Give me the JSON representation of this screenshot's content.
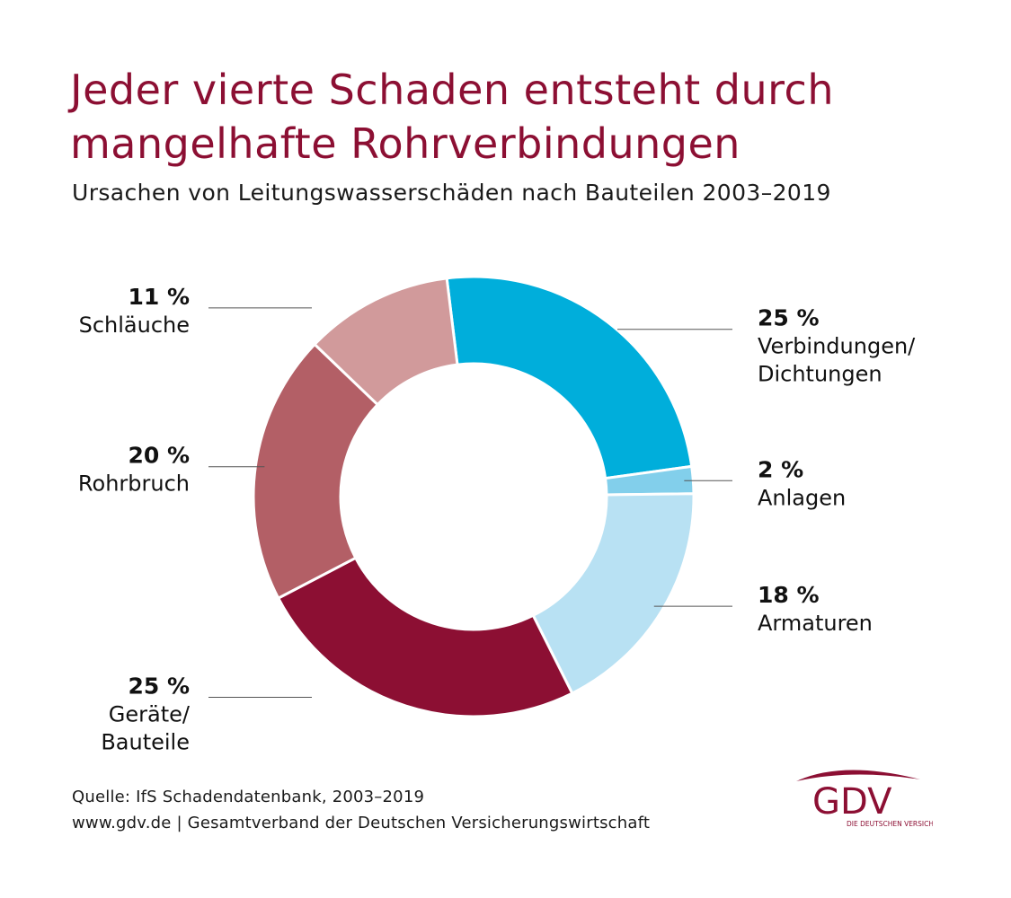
{
  "title_lines": [
    "Jeder vierte Schaden entsteht durch",
    "mangelhafte Rohrverbindungen"
  ],
  "subtitle": "Ursachen von Leitungswasserschäden nach Bauteilen 2003–2019",
  "chart_data": {
    "type": "pie",
    "donut": true,
    "title": "Jeder vierte Schaden entsteht durch mangelhafte Rohrverbindungen",
    "subtitle": "Ursachen von Leitungswasserschäden nach Bauteilen 2003–2019",
    "unit": "%",
    "slices": [
      {
        "label": "Verbindungen/ Dichtungen",
        "label_lines": [
          "Verbindungen/",
          "Dichtungen"
        ],
        "value": 25,
        "value_label": "25 %",
        "color": "#00aedb",
        "side": "right"
      },
      {
        "label": "Anlagen",
        "label_lines": [
          "Anlagen"
        ],
        "value": 2,
        "value_label": "2 %",
        "color": "#82cfeb",
        "side": "right"
      },
      {
        "label": "Armaturen",
        "label_lines": [
          "Armaturen"
        ],
        "value": 18,
        "value_label": "18 %",
        "color": "#b8e1f3",
        "side": "right"
      },
      {
        "label": "Geräte/ Bauteile",
        "label_lines": [
          "Geräte/",
          "Bauteile"
        ],
        "value": 25,
        "value_label": "25 %",
        "color": "#8c0f33",
        "side": "left"
      },
      {
        "label": "Rohrbruch",
        "label_lines": [
          "Rohrbruch"
        ],
        "value": 20,
        "value_label": "20 %",
        "color": "#b35f66",
        "side": "left"
      },
      {
        "label": "Schläuche",
        "label_lines": [
          "Schläuche"
        ],
        "value": 11,
        "value_label": "11 %",
        "color": "#d19a9b",
        "side": "left"
      }
    ],
    "legend": "none"
  },
  "footer": {
    "source": "Quelle: IfS Schadendatenbank, 2003–2019",
    "publisher": "www.gdv.de | Gesamtverband der Deutschen Versicherungswirtschaft"
  },
  "logo": {
    "text": "GDV",
    "tagline": "DIE DEUTSCHEN VERSICHERER",
    "color": "#8c0f33"
  }
}
